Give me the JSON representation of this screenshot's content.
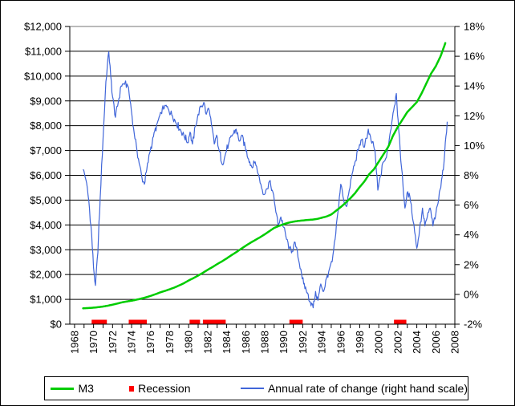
{
  "chart_data": {
    "type": "line",
    "title": "",
    "x_axis": {
      "range": [
        1967.5,
        2008
      ],
      "tick_step_years": 1,
      "label_step_years": 2,
      "labels": [
        "1968",
        "1970",
        "1972",
        "1974",
        "1976",
        "1978",
        "1980",
        "1982",
        "1984",
        "1986",
        "1988",
        "1990",
        "1992",
        "1994",
        "1996",
        "1998",
        "2000",
        "2002",
        "2004",
        "2006",
        "2008"
      ]
    },
    "y_axis_left": {
      "range": [
        0,
        12000
      ],
      "gridline_step": 1000,
      "labels": [
        "$12,000",
        "$11,000",
        "$10,000",
        "$9,000",
        "$8,000",
        "$7,000",
        "$6,000",
        "$5,000",
        "$4,000",
        "$3,000",
        "$2,000",
        "$1,000",
        "$0"
      ]
    },
    "y_axis_right": {
      "range": [
        -2,
        18
      ],
      "gridline_step": 2,
      "labels": [
        "18%",
        "16%",
        "14%",
        "12%",
        "10%",
        "8%",
        "6%",
        "4%",
        "2%",
        "0%",
        "-2%"
      ]
    },
    "grid": {
      "line_color": "#000000",
      "top_border_color": "#909090",
      "background": "#ffffff"
    },
    "legend": {
      "position": "bottom"
    },
    "series": [
      {
        "name": "M3",
        "type": "line",
        "axis": "left",
        "color": "#00CC00",
        "stroke_width": 2.5,
        "points": [
          [
            1968.9,
            640
          ],
          [
            1969.5,
            650
          ],
          [
            1970,
            665
          ],
          [
            1970.5,
            685
          ],
          [
            1971,
            710
          ],
          [
            1971.5,
            745
          ],
          [
            1972,
            785
          ],
          [
            1972.5,
            830
          ],
          [
            1973,
            880
          ],
          [
            1973.5,
            915
          ],
          [
            1974,
            945
          ],
          [
            1974.5,
            985
          ],
          [
            1975,
            1030
          ],
          [
            1975.5,
            1080
          ],
          [
            1976,
            1140
          ],
          [
            1976.5,
            1205
          ],
          [
            1977,
            1280
          ],
          [
            1977.5,
            1340
          ],
          [
            1978,
            1405
          ],
          [
            1978.5,
            1475
          ],
          [
            1979,
            1560
          ],
          [
            1979.5,
            1650
          ],
          [
            1980,
            1760
          ],
          [
            1980.5,
            1855
          ],
          [
            1981,
            1960
          ],
          [
            1981.5,
            2070
          ],
          [
            1982,
            2190
          ],
          [
            1982.5,
            2300
          ],
          [
            1983,
            2420
          ],
          [
            1983.5,
            2530
          ],
          [
            1984,
            2650
          ],
          [
            1984.5,
            2780
          ],
          [
            1985,
            2900
          ],
          [
            1985.5,
            3030
          ],
          [
            1986,
            3160
          ],
          [
            1986.5,
            3280
          ],
          [
            1987,
            3390
          ],
          [
            1987.5,
            3500
          ],
          [
            1988,
            3620
          ],
          [
            1988.5,
            3750
          ],
          [
            1989,
            3880
          ],
          [
            1989.5,
            3960
          ],
          [
            1990,
            4030
          ],
          [
            1990.5,
            4090
          ],
          [
            1991,
            4130
          ],
          [
            1991.5,
            4160
          ],
          [
            1992,
            4180
          ],
          [
            1992.5,
            4200
          ],
          [
            1993,
            4215
          ],
          [
            1993.5,
            4240
          ],
          [
            1994,
            4290
          ],
          [
            1994.5,
            4340
          ],
          [
            1995,
            4420
          ],
          [
            1995.5,
            4570
          ],
          [
            1996,
            4720
          ],
          [
            1996.5,
            4890
          ],
          [
            1997,
            5070
          ],
          [
            1997.5,
            5280
          ],
          [
            1998,
            5530
          ],
          [
            1998.5,
            5760
          ],
          [
            1999,
            6050
          ],
          [
            1999.5,
            6250
          ],
          [
            2000,
            6550
          ],
          [
            2000.5,
            6850
          ],
          [
            2001,
            7150
          ],
          [
            2001.5,
            7600
          ],
          [
            2002,
            7950
          ],
          [
            2002.5,
            8250
          ],
          [
            2003,
            8550
          ],
          [
            2003.5,
            8750
          ],
          [
            2004,
            8950
          ],
          [
            2004.5,
            9300
          ],
          [
            2005,
            9700
          ],
          [
            2005.5,
            10100
          ],
          [
            2006,
            10400
          ],
          [
            2006.5,
            10800
          ],
          [
            2007,
            11330
          ]
        ]
      },
      {
        "name": "Recession",
        "type": "period-markers",
        "color": "#FF0000",
        "intervals": [
          [
            1969.8,
            1971.4
          ],
          [
            1973.7,
            1975.6
          ],
          [
            1980.1,
            1981.2
          ],
          [
            1981.5,
            1983.9
          ],
          [
            1990.6,
            1992.0
          ],
          [
            2001.6,
            2002.9
          ]
        ]
      },
      {
        "name": "Annual rate of change (right hand scale)",
        "type": "line",
        "axis": "right",
        "color": "#4066D9",
        "stroke_width": 1.2,
        "points": [
          [
            1968.9,
            8.4
          ],
          [
            1969.2,
            7.7
          ],
          [
            1969.5,
            6.3
          ],
          [
            1969.8,
            4.0
          ],
          [
            1970.0,
            1.8
          ],
          [
            1970.2,
            0.6
          ],
          [
            1970.45,
            2.8
          ],
          [
            1970.7,
            6.5
          ],
          [
            1971.0,
            10.5
          ],
          [
            1971.3,
            14.3
          ],
          [
            1971.6,
            16.3
          ],
          [
            1971.8,
            14.7
          ],
          [
            1972.0,
            13.3
          ],
          [
            1972.3,
            11.9
          ],
          [
            1972.6,
            12.9
          ],
          [
            1972.9,
            14.0
          ],
          [
            1973.3,
            14.2
          ],
          [
            1973.6,
            14.0
          ],
          [
            1973.9,
            12.8
          ],
          [
            1974.2,
            11.2
          ],
          [
            1974.5,
            10.0
          ],
          [
            1974.8,
            8.8
          ],
          [
            1975.1,
            7.8
          ],
          [
            1975.35,
            7.4
          ],
          [
            1975.6,
            8.4
          ],
          [
            1975.9,
            9.5
          ],
          [
            1976.3,
            10.6
          ],
          [
            1976.7,
            11.5
          ],
          [
            1977.1,
            12.2
          ],
          [
            1977.5,
            12.7
          ],
          [
            1977.9,
            12.4
          ],
          [
            1978.3,
            12.0
          ],
          [
            1978.7,
            11.5
          ],
          [
            1979.1,
            11.1
          ],
          [
            1979.5,
            10.7
          ],
          [
            1979.9,
            10.2
          ],
          [
            1980.15,
            10.9
          ],
          [
            1980.4,
            10.1
          ],
          [
            1980.7,
            11.3
          ],
          [
            1981.0,
            12.1
          ],
          [
            1981.3,
            12.6
          ],
          [
            1981.6,
            12.9
          ],
          [
            1981.85,
            12.1
          ],
          [
            1982.1,
            12.5
          ],
          [
            1982.4,
            11.4
          ],
          [
            1982.7,
            10.1
          ],
          [
            1982.95,
            10.7
          ],
          [
            1983.2,
            9.7
          ],
          [
            1983.6,
            8.7
          ],
          [
            1983.9,
            9.5
          ],
          [
            1984.2,
            10.1
          ],
          [
            1984.6,
            10.7
          ],
          [
            1985.0,
            11.1
          ],
          [
            1985.3,
            10.3
          ],
          [
            1985.6,
            10.7
          ],
          [
            1985.95,
            9.9
          ],
          [
            1986.3,
            9.1
          ],
          [
            1986.7,
            8.5
          ],
          [
            1987.0,
            8.9
          ],
          [
            1987.3,
            8.1
          ],
          [
            1987.6,
            7.4
          ],
          [
            1987.9,
            6.7
          ],
          [
            1988.2,
            7.1
          ],
          [
            1988.5,
            7.6
          ],
          [
            1988.8,
            7.0
          ],
          [
            1989.1,
            5.9
          ],
          [
            1989.4,
            4.7
          ],
          [
            1989.7,
            5.2
          ],
          [
            1990.0,
            4.5
          ],
          [
            1990.3,
            3.7
          ],
          [
            1990.6,
            3.1
          ],
          [
            1990.9,
            2.9
          ],
          [
            1991.2,
            3.5
          ],
          [
            1991.5,
            2.5
          ],
          [
            1991.8,
            1.7
          ],
          [
            1992.1,
            0.7
          ],
          [
            1992.5,
            0.1
          ],
          [
            1992.8,
            -0.5
          ],
          [
            1993.1,
            -0.9
          ],
          [
            1993.35,
            0.2
          ],
          [
            1993.6,
            -0.4
          ],
          [
            1993.9,
            0.7
          ],
          [
            1994.2,
            0.2
          ],
          [
            1994.5,
            1.1
          ],
          [
            1994.8,
            1.7
          ],
          [
            1995.1,
            2.2
          ],
          [
            1995.4,
            3.7
          ],
          [
            1995.7,
            5.5
          ],
          [
            1996.0,
            7.4
          ],
          [
            1996.3,
            6.4
          ],
          [
            1996.6,
            5.9
          ],
          [
            1996.9,
            7.0
          ],
          [
            1997.2,
            8.1
          ],
          [
            1997.5,
            8.9
          ],
          [
            1997.9,
            9.8
          ],
          [
            1998.2,
            10.4
          ],
          [
            1998.5,
            9.9
          ],
          [
            1998.9,
            11.1
          ],
          [
            1999.2,
            10.3
          ],
          [
            1999.6,
            9.7
          ],
          [
            1999.9,
            7.0
          ],
          [
            2000.2,
            8.0
          ],
          [
            2000.5,
            8.9
          ],
          [
            2000.8,
            9.2
          ],
          [
            2001.1,
            10.4
          ],
          [
            2001.5,
            12.2
          ],
          [
            2001.85,
            13.5
          ],
          [
            2002.1,
            11.0
          ],
          [
            2002.4,
            8.5
          ],
          [
            2002.75,
            5.8
          ],
          [
            2003.05,
            6.9
          ],
          [
            2003.35,
            6.2
          ],
          [
            2003.7,
            4.7
          ],
          [
            2004.0,
            3.1
          ],
          [
            2004.3,
            4.4
          ],
          [
            2004.6,
            5.8
          ],
          [
            2004.85,
            4.6
          ],
          [
            2005.1,
            5.2
          ],
          [
            2005.4,
            5.8
          ],
          [
            2005.7,
            4.6
          ],
          [
            2006.0,
            5.4
          ],
          [
            2006.3,
            6.4
          ],
          [
            2006.6,
            7.7
          ],
          [
            2006.85,
            8.8
          ],
          [
            2007.0,
            10.2
          ],
          [
            2007.2,
            11.6
          ]
        ]
      }
    ]
  }
}
